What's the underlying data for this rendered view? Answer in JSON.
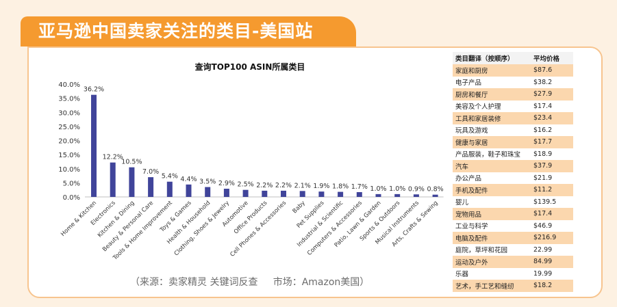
{
  "page_title": "亚马逊中国卖家关注的类目-美国站",
  "source_note": "（来源：卖家精灵 关键词反查     市场：Amazon美国）",
  "colors": {
    "banner": "#f59a2f",
    "bar": "#40449a",
    "table_highlight": "#fbd7ae"
  },
  "chart_data": {
    "type": "bar",
    "title": "查询TOP100 ASIN所属类目",
    "categories": [
      "Home & Kitchen",
      "Electronics",
      "Kitchen & Dining",
      "Beauty & Personal Care",
      "Tools & Home Improvement",
      "Toys & Games",
      "Health & Household",
      "Clothing, Shoes & Jewelry",
      "Automotive",
      "Office Products",
      "Cell Phones & Accessories",
      "Baby",
      "Pet Supplies",
      "Industrial & Scientific",
      "Computers & Accessories",
      "Patio, Lawn & Garden",
      "Sports & Outdoors",
      "Musical Instruments",
      "Arts, Crafts & Sewing"
    ],
    "values": [
      36.2,
      12.2,
      10.5,
      7.0,
      5.4,
      4.4,
      3.5,
      2.9,
      2.5,
      2.2,
      2.2,
      2.1,
      1.9,
      1.8,
      1.7,
      1.0,
      1.0,
      0.9,
      0.8
    ],
    "value_labels": [
      "36.2%",
      "12.2%",
      "10.5%",
      "7.0%",
      "5.4%",
      "4.4%",
      "3.5%",
      "2.9%",
      "2.5%",
      "2.2%",
      "2.2%",
      "2.1%",
      "1.9%",
      "1.8%",
      "1.7%",
      "1.0%",
      "1.0%",
      "0.9%",
      "0.8%"
    ],
    "ylim": [
      0,
      40
    ],
    "yticks": [
      "0.0%",
      "5.0%",
      "10.0%",
      "15.0%",
      "20.0%",
      "25.0%",
      "30.0%",
      "35.0%",
      "40.0%"
    ],
    "grid": false,
    "legend": "none"
  },
  "price_table": {
    "headers": [
      "类目翻译（按顺序）",
      "平均价格"
    ],
    "rows": [
      [
        "家庭和厨房",
        "$87.6"
      ],
      [
        "电子产品",
        "$38.2"
      ],
      [
        "厨房和餐厅",
        "$27.9"
      ],
      [
        "美容及个人护理",
        "$17.4"
      ],
      [
        "工具和家居装修",
        "$23.4"
      ],
      [
        "玩具及游戏",
        "$16.2"
      ],
      [
        "健康与家居",
        "$17.7"
      ],
      [
        "产品服装，鞋子和珠宝",
        "$18.9"
      ],
      [
        "汽车",
        "$37.9"
      ],
      [
        "办公产品",
        "$21.9"
      ],
      [
        "手机及配件",
        "$11.2"
      ],
      [
        "婴儿",
        "$139.5"
      ],
      [
        "宠物用品",
        "$17.4"
      ],
      [
        "工业与科学",
        "$46.9"
      ],
      [
        "电脑及配件",
        "$216.9"
      ],
      [
        "庭院，草坪和花园",
        "22.99"
      ],
      [
        "运动及户外",
        "84.99"
      ],
      [
        "乐器",
        "19.99"
      ],
      [
        "艺术，手工艺和缝纫",
        "$18.2"
      ]
    ]
  }
}
